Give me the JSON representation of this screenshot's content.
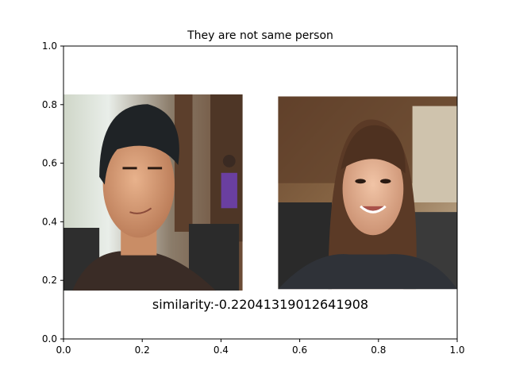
{
  "chart_data": {
    "type": "image",
    "title": "They are not same person",
    "xlabel": "",
    "ylabel": "",
    "xlim": [
      0,
      1
    ],
    "ylim": [
      0,
      1
    ],
    "xticks": [
      "0.0",
      "0.2",
      "0.4",
      "0.6",
      "0.8",
      "1.0"
    ],
    "yticks": [
      "0.0",
      "0.2",
      "0.4",
      "0.6",
      "0.8",
      "1.0"
    ],
    "grid": false,
    "annotation": "similarity:-0.22041319012641908",
    "images": [
      {
        "name": "face-photo-left",
        "extent": [
          0.0,
          0.455,
          0.165,
          0.835
        ]
      },
      {
        "name": "face-photo-right",
        "extent": [
          0.545,
          1.0,
          0.17,
          0.828
        ]
      }
    ]
  }
}
